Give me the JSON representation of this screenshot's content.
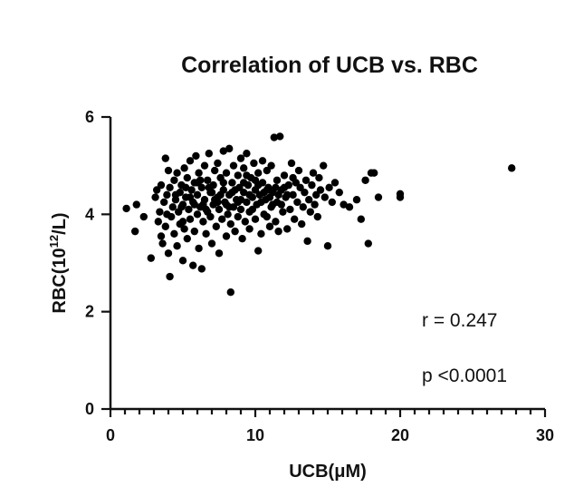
{
  "chart_data": {
    "type": "scatter",
    "title": "Correlation of UCB vs. RBC",
    "xlabel": "UCB(μM)",
    "ylabel_main": "RBC(10",
    "ylabel_sup": "12",
    "ylabel_end": "/L)",
    "xlim": [
      0,
      30
    ],
    "ylim": [
      0,
      6
    ],
    "xticks": [
      0,
      10,
      20,
      30
    ],
    "yticks": [
      0,
      2,
      4,
      6
    ],
    "x_minor_step": 1,
    "annotations": [
      "r = 0.247",
      "p <0.0001"
    ],
    "marker_color": "#000000",
    "points": [
      [
        1.1,
        4.12
      ],
      [
        1.7,
        3.65
      ],
      [
        1.8,
        4.2
      ],
      [
        2.3,
        3.95
      ],
      [
        2.8,
        3.1
      ],
      [
        3.1,
        4.35
      ],
      [
        3.2,
        4.5
      ],
      [
        3.3,
        3.85
      ],
      [
        3.4,
        4.05
      ],
      [
        3.5,
        4.6
      ],
      [
        3.5,
        3.55
      ],
      [
        3.6,
        3.4
      ],
      [
        3.7,
        4.25
      ],
      [
        3.8,
        5.15
      ],
      [
        3.8,
        3.75
      ],
      [
        3.9,
        4.4
      ],
      [
        4.0,
        3.2
      ],
      [
        4.0,
        4.9
      ],
      [
        4.1,
        2.72
      ],
      [
        4.1,
        4.55
      ],
      [
        4.2,
        3.95
      ],
      [
        4.3,
        4.15
      ],
      [
        4.4,
        3.6
      ],
      [
        4.4,
        4.7
      ],
      [
        4.5,
        4.3
      ],
      [
        4.6,
        3.35
      ],
      [
        4.6,
        4.85
      ],
      [
        4.7,
        4.05
      ],
      [
        4.8,
        3.8
      ],
      [
        4.8,
        4.45
      ],
      [
        4.9,
        4.6
      ],
      [
        5.0,
        3.05
      ],
      [
        5.0,
        4.2
      ],
      [
        5.1,
        3.7
      ],
      [
        5.1,
        4.95
      ],
      [
        5.2,
        4.35
      ],
      [
        5.3,
        3.5
      ],
      [
        5.3,
        4.75
      ],
      [
        5.4,
        4.1
      ],
      [
        5.5,
        5.1
      ],
      [
        5.5,
        3.9
      ],
      [
        5.6,
        4.5
      ],
      [
        5.7,
        2.95
      ],
      [
        5.7,
        4.25
      ],
      [
        5.8,
        3.65
      ],
      [
        5.8,
        4.65
      ],
      [
        5.9,
        5.2
      ],
      [
        6.0,
        4.0
      ],
      [
        6.0,
        4.4
      ],
      [
        6.1,
        3.3
      ],
      [
        6.1,
        4.85
      ],
      [
        6.2,
        4.15
      ],
      [
        6.3,
        2.88
      ],
      [
        6.3,
        4.55
      ],
      [
        6.4,
        3.85
      ],
      [
        6.5,
        5.0
      ],
      [
        6.5,
        4.3
      ],
      [
        6.6,
        3.6
      ],
      [
        6.7,
        4.7
      ],
      [
        6.7,
        4.05
      ],
      [
        6.8,
        5.25
      ],
      [
        6.9,
        3.95
      ],
      [
        6.9,
        4.45
      ],
      [
        7.0,
        3.4
      ],
      [
        7.1,
        4.6
      ],
      [
        7.1,
        4.2
      ],
      [
        7.2,
        4.9
      ],
      [
        7.3,
        3.75
      ],
      [
        7.4,
        4.35
      ],
      [
        7.4,
        5.05
      ],
      [
        7.5,
        3.2
      ],
      [
        7.5,
        4.1
      ],
      [
        7.6,
        4.75
      ],
      [
        7.7,
        3.9
      ],
      [
        7.8,
        4.5
      ],
      [
        7.8,
        5.3
      ],
      [
        7.9,
        4.25
      ],
      [
        8.0,
        3.55
      ],
      [
        8.0,
        4.85
      ],
      [
        8.1,
        4.0
      ],
      [
        8.2,
        4.4
      ],
      [
        8.2,
        5.35
      ],
      [
        8.3,
        2.4
      ],
      [
        8.3,
        3.8
      ],
      [
        8.4,
        4.65
      ],
      [
        8.5,
        4.15
      ],
      [
        8.5,
        5.0
      ],
      [
        8.6,
        3.65
      ],
      [
        8.7,
        4.3
      ],
      [
        8.8,
        4.8
      ],
      [
        8.8,
        3.95
      ],
      [
        8.9,
        4.55
      ],
      [
        9.0,
        5.15
      ],
      [
        9.0,
        4.1
      ],
      [
        9.1,
        3.5
      ],
      [
        9.2,
        4.45
      ],
      [
        9.2,
        4.95
      ],
      [
        9.3,
        3.85
      ],
      [
        9.4,
        4.25
      ],
      [
        9.4,
        5.25
      ],
      [
        9.5,
        4.6
      ],
      [
        9.6,
        3.7
      ],
      [
        9.6,
        4.05
      ],
      [
        9.7,
        4.75
      ],
      [
        9.8,
        4.35
      ],
      [
        9.9,
        5.05
      ],
      [
        10.0,
        3.9
      ],
      [
        10.0,
        4.5
      ],
      [
        10.1,
        4.2
      ],
      [
        10.2,
        3.25
      ],
      [
        10.2,
        4.85
      ],
      [
        10.3,
        4.4
      ],
      [
        10.4,
        3.6
      ],
      [
        10.5,
        4.65
      ],
      [
        10.5,
        5.1
      ],
      [
        10.6,
        4.0
      ],
      [
        10.7,
        4.3
      ],
      [
        10.8,
        3.95
      ],
      [
        10.8,
        4.9
      ],
      [
        10.9,
        4.55
      ],
      [
        11.0,
        3.75
      ],
      [
        11.1,
        4.15
      ],
      [
        11.1,
        5.0
      ],
      [
        11.2,
        4.45
      ],
      [
        11.3,
        5.58
      ],
      [
        11.4,
        3.85
      ],
      [
        11.5,
        4.7
      ],
      [
        11.5,
        4.25
      ],
      [
        11.6,
        3.65
      ],
      [
        11.7,
        5.6
      ],
      [
        11.8,
        4.5
      ],
      [
        11.9,
        4.05
      ],
      [
        12.0,
        4.8
      ],
      [
        12.1,
        4.35
      ],
      [
        12.2,
        3.7
      ],
      [
        12.3,
        4.6
      ],
      [
        12.4,
        4.1
      ],
      [
        12.5,
        5.05
      ],
      [
        12.6,
        4.4
      ],
      [
        12.7,
        3.9
      ],
      [
        12.8,
        4.65
      ],
      [
        12.9,
        4.25
      ],
      [
        13.0,
        4.9
      ],
      [
        13.1,
        4.55
      ],
      [
        13.2,
        3.8
      ],
      [
        13.3,
        4.15
      ],
      [
        13.4,
        4.45
      ],
      [
        13.5,
        4.7
      ],
      [
        13.6,
        3.45
      ],
      [
        13.7,
        4.3
      ],
      [
        13.8,
        4.05
      ],
      [
        13.9,
        4.6
      ],
      [
        14.0,
        4.85
      ],
      [
        14.1,
        4.2
      ],
      [
        14.2,
        4.4
      ],
      [
        14.3,
        3.95
      ],
      [
        14.4,
        4.75
      ],
      [
        14.5,
        4.5
      ],
      [
        14.7,
        5.0
      ],
      [
        14.8,
        4.35
      ],
      [
        15.0,
        3.35
      ],
      [
        15.1,
        4.55
      ],
      [
        15.3,
        4.25
      ],
      [
        15.5,
        4.65
      ],
      [
        15.8,
        4.45
      ],
      [
        16.1,
        4.2
      ],
      [
        16.5,
        4.15
      ],
      [
        17.0,
        4.3
      ],
      [
        17.3,
        3.9
      ],
      [
        17.6,
        4.7
      ],
      [
        17.8,
        3.4
      ],
      [
        18.0,
        4.85
      ],
      [
        18.2,
        4.85
      ],
      [
        18.5,
        4.35
      ],
      [
        20.0,
        4.42
      ],
      [
        20.0,
        4.35
      ],
      [
        27.7,
        4.95
      ],
      [
        4.5,
        4.4
      ],
      [
        5.2,
        4.55
      ],
      [
        5.8,
        4.2
      ],
      [
        6.2,
        4.7
      ],
      [
        6.6,
        4.1
      ],
      [
        7.0,
        4.45
      ],
      [
        7.4,
        4.25
      ],
      [
        7.8,
        4.65
      ],
      [
        8.2,
        4.15
      ],
      [
        8.6,
        4.5
      ],
      [
        9.0,
        4.3
      ],
      [
        9.4,
        4.8
      ],
      [
        9.8,
        4.1
      ],
      [
        10.2,
        4.6
      ],
      [
        10.6,
        4.45
      ],
      [
        11.0,
        4.35
      ],
      [
        11.4,
        4.55
      ],
      [
        11.8,
        4.2
      ],
      [
        12.2,
        4.4
      ],
      [
        12.6,
        4.75
      ],
      [
        4.9,
        4.15
      ],
      [
        5.5,
        4.35
      ],
      [
        6.0,
        4.65
      ],
      [
        6.4,
        4.2
      ],
      [
        6.8,
        4.55
      ],
      [
        7.2,
        4.3
      ],
      [
        7.6,
        4.4
      ],
      [
        8.0,
        4.2
      ],
      [
        8.4,
        4.45
      ],
      [
        8.8,
        4.25
      ],
      [
        9.2,
        4.65
      ],
      [
        9.6,
        4.4
      ],
      [
        10.0,
        4.7
      ],
      [
        10.4,
        4.25
      ],
      [
        10.8,
        4.5
      ],
      [
        11.2,
        4.2
      ],
      [
        11.6,
        4.4
      ],
      [
        12.0,
        4.55
      ],
      [
        3.9,
        4.0
      ],
      [
        5.0,
        3.85
      ]
    ]
  }
}
